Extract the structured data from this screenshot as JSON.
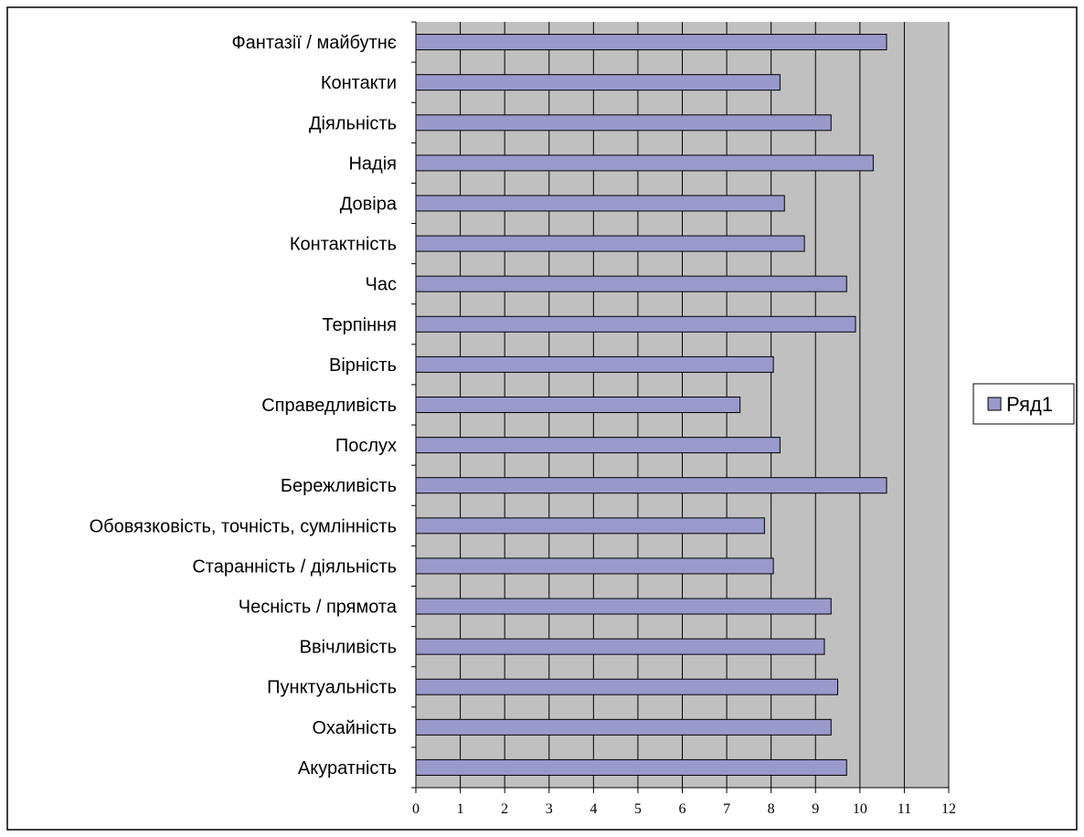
{
  "chart_data": {
    "type": "bar",
    "orientation": "horizontal",
    "categories": [
      "Фантазії / майбутнє",
      "Контакти",
      "Діяльність",
      "Надія",
      "Довіра",
      "Контактність",
      "Час",
      "Терпіння",
      "Вірність",
      "Справедливість",
      "Послух",
      "Бережливість",
      "Обовязковість, точність, сумлінність",
      "Старанність / діяльність",
      "Чесність / прямота",
      "Ввічливість",
      "Пунктуальність",
      "Охайність",
      "Акуратність"
    ],
    "series": [
      {
        "name": "Ряд1",
        "values": [
          10.6,
          8.2,
          9.35,
          10.3,
          8.3,
          8.75,
          9.7,
          9.9,
          8.05,
          7.3,
          8.2,
          10.6,
          7.85,
          8.05,
          9.35,
          9.2,
          9.5,
          9.35,
          9.7
        ]
      }
    ],
    "xlim": [
      0,
      12
    ],
    "x_ticks": [
      0,
      1,
      2,
      3,
      4,
      5,
      6,
      7,
      8,
      9,
      10,
      11,
      12
    ],
    "grid": true,
    "legend_position": "right",
    "colors": {
      "bar_fill": "#9999cc",
      "bar_stroke": "#000000",
      "plot_background": "#c0c0c0",
      "grid_line": "#000000"
    }
  }
}
